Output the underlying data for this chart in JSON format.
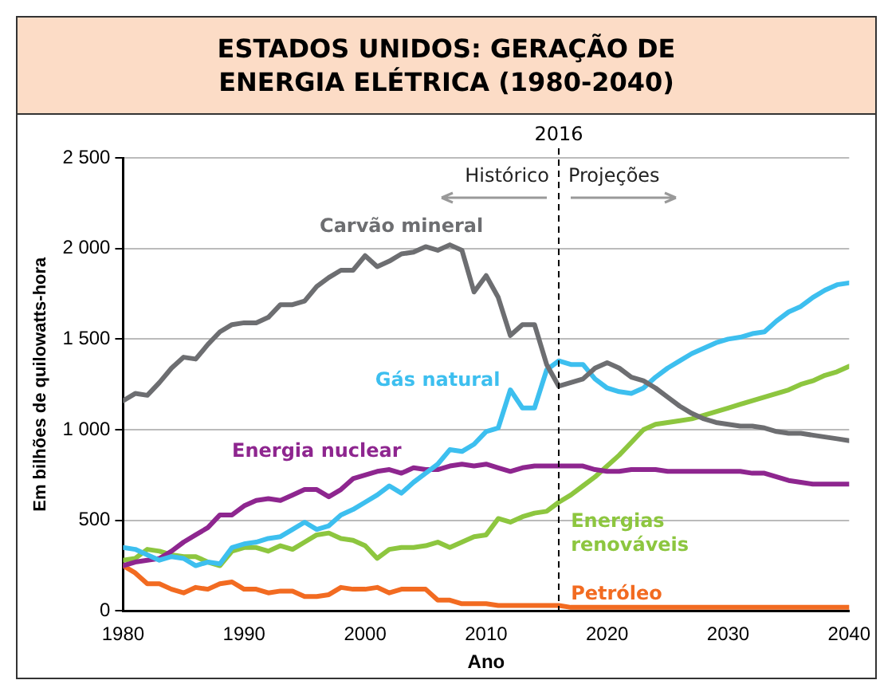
{
  "chart_data": {
    "type": "line",
    "title": "ESTADOS UNIDOS: GERAÇÃO DE ENERGIA ELÉTRICA (1980-2040)",
    "xlabel": "Ano",
    "ylabel": "Em bilhões de quilowatts-hora",
    "x": [
      1980,
      1981,
      1982,
      1983,
      1984,
      1985,
      1986,
      1987,
      1988,
      1989,
      1990,
      1991,
      1992,
      1993,
      1994,
      1995,
      1996,
      1997,
      1998,
      1999,
      2000,
      2001,
      2002,
      2003,
      2004,
      2005,
      2006,
      2007,
      2008,
      2009,
      2010,
      2011,
      2012,
      2013,
      2014,
      2015,
      2016,
      2017,
      2018,
      2019,
      2020,
      2021,
      2022,
      2023,
      2024,
      2025,
      2026,
      2027,
      2028,
      2029,
      2030,
      2031,
      2032,
      2033,
      2034,
      2035,
      2036,
      2037,
      2038,
      2039,
      2040
    ],
    "series": [
      {
        "name": "Carvão mineral",
        "color": "#6d6e71",
        "values": [
          1160,
          1200,
          1190,
          1260,
          1340,
          1400,
          1390,
          1470,
          1540,
          1580,
          1590,
          1590,
          1620,
          1690,
          1690,
          1710,
          1790,
          1840,
          1880,
          1880,
          1960,
          1900,
          1930,
          1970,
          1980,
          2010,
          1990,
          2020,
          1990,
          1760,
          1850,
          1730,
          1520,
          1580,
          1580,
          1360,
          1240,
          1260,
          1280,
          1340,
          1370,
          1340,
          1290,
          1270,
          1230,
          1180,
          1130,
          1090,
          1060,
          1040,
          1030,
          1020,
          1020,
          1010,
          990,
          980,
          980,
          970,
          960,
          950,
          940
        ]
      },
      {
        "name": "Gás natural",
        "color": "#3dbfef",
        "values": [
          350,
          340,
          310,
          280,
          300,
          290,
          250,
          270,
          260,
          350,
          370,
          380,
          400,
          410,
          450,
          490,
          450,
          470,
          530,
          560,
          600,
          640,
          690,
          650,
          710,
          760,
          810,
          890,
          880,
          920,
          990,
          1010,
          1220,
          1120,
          1120,
          1330,
          1380,
          1360,
          1360,
          1280,
          1230,
          1210,
          1200,
          1230,
          1290,
          1340,
          1380,
          1420,
          1450,
          1480,
          1500,
          1510,
          1530,
          1540,
          1600,
          1650,
          1680,
          1730,
          1770,
          1800,
          1810
        ]
      },
      {
        "name": "Energia nuclear",
        "color": "#8e268f",
        "values": [
          250,
          270,
          280,
          290,
          330,
          380,
          420,
          460,
          530,
          530,
          580,
          610,
          620,
          610,
          640,
          670,
          670,
          630,
          670,
          730,
          750,
          770,
          780,
          760,
          790,
          780,
          780,
          800,
          810,
          800,
          810,
          790,
          770,
          790,
          800,
          800,
          800,
          800,
          800,
          780,
          770,
          770,
          780,
          780,
          780,
          770,
          770,
          770,
          770,
          770,
          770,
          770,
          760,
          760,
          740,
          720,
          710,
          700,
          700,
          700,
          700
        ]
      },
      {
        "name": "Energias renováveis",
        "color": "#8dc63f",
        "values": [
          280,
          290,
          340,
          330,
          310,
          300,
          300,
          270,
          250,
          330,
          350,
          350,
          330,
          360,
          340,
          380,
          420,
          430,
          400,
          390,
          360,
          290,
          340,
          350,
          350,
          360,
          380,
          350,
          380,
          410,
          420,
          510,
          490,
          520,
          540,
          550,
          600,
          640,
          690,
          740,
          800,
          860,
          930,
          1000,
          1030,
          1040,
          1050,
          1060,
          1080,
          1100,
          1120,
          1140,
          1160,
          1180,
          1200,
          1220,
          1250,
          1270,
          1300,
          1320,
          1350
        ]
      },
      {
        "name": "Petróleo",
        "color": "#f26b21",
        "values": [
          250,
          210,
          150,
          150,
          120,
          100,
          130,
          120,
          150,
          160,
          120,
          120,
          100,
          110,
          110,
          80,
          80,
          90,
          130,
          120,
          120,
          130,
          100,
          120,
          120,
          120,
          60,
          60,
          40,
          40,
          40,
          30,
          30,
          30,
          30,
          30,
          30,
          20,
          20,
          20,
          20,
          20,
          20,
          20,
          20,
          20,
          20,
          20,
          20,
          20,
          20,
          20,
          20,
          20,
          20,
          20,
          20,
          20,
          20,
          20,
          20
        ]
      }
    ],
    "xlim": [
      1980,
      2040
    ],
    "xticks": [
      1980,
      1990,
      2000,
      2010,
      2020,
      2030,
      2040
    ],
    "ylim": [
      0,
      2500
    ],
    "yticks": [
      0,
      {
        "value": 500,
        "label": "500"
      },
      {
        "value": 1000,
        "label": "1 000"
      },
      {
        "value": 1500,
        "label": "1 500"
      },
      {
        "value": 2000,
        "label": "2 000"
      },
      {
        "value": 2500,
        "label": "2 500"
      }
    ],
    "grid": "y",
    "legend": false,
    "marker": "none",
    "line_style": "solid",
    "ref_lines": [
      {
        "axis": "x",
        "value": 2016,
        "label": "2016",
        "line_style": "dashed",
        "color": "#000000"
      }
    ],
    "annotations": [
      "Histórico",
      "Projeções"
    ]
  }
}
